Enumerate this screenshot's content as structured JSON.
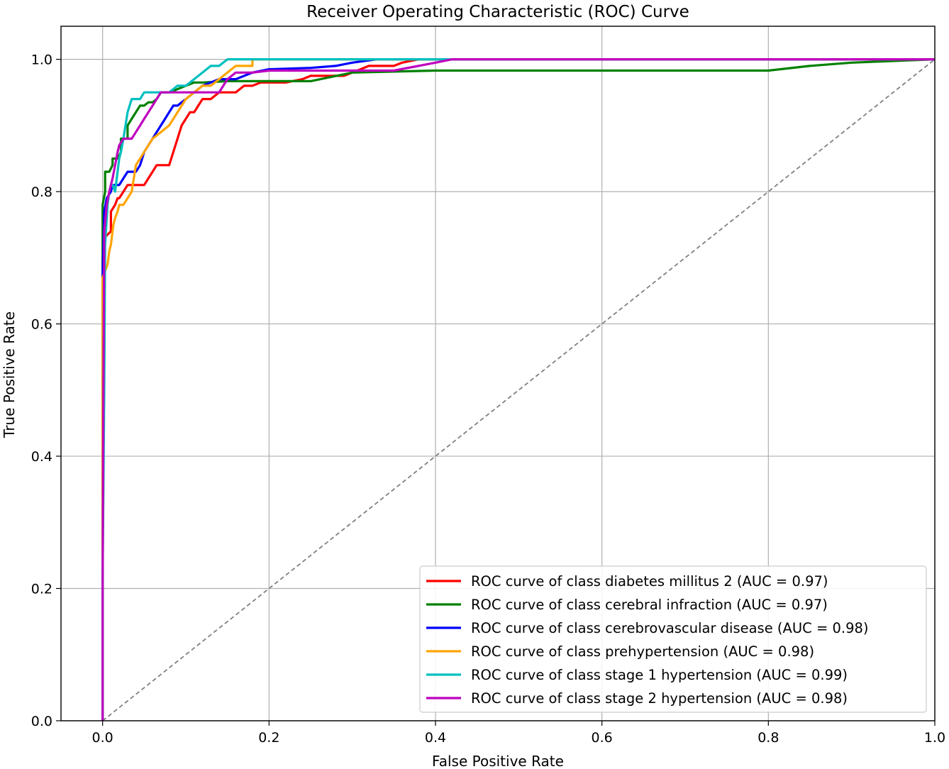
{
  "chart_data": {
    "type": "line",
    "title": "Receiver Operating Characteristic (ROC) Curve",
    "xlabel": "False Positive Rate",
    "ylabel": "True Positive Rate",
    "xlim": [
      -0.05,
      1.0
    ],
    "ylim": [
      0.0,
      1.05
    ],
    "xticks": [
      0.0,
      0.2,
      0.4,
      0.6,
      0.8,
      1.0
    ],
    "yticks": [
      0.0,
      0.2,
      0.4,
      0.6,
      0.8,
      1.0
    ],
    "xtick_labels": [
      "0.0",
      "0.2",
      "0.4",
      "0.6",
      "0.8",
      "1.0"
    ],
    "ytick_labels": [
      "0.0",
      "0.2",
      "0.4",
      "0.6",
      "0.8",
      "1.0"
    ],
    "grid": true,
    "legend_position": "lower-right",
    "diagonal": {
      "x": [
        0,
        1
      ],
      "y": [
        0,
        1
      ],
      "color": "#808080",
      "style": "dashed"
    },
    "series": [
      {
        "name": "ROC curve of class diabetes millitus 2 (AUC = 0.97)",
        "color": "#ff0000",
        "x": [
          0,
          0.0,
          0.002,
          0.002,
          0.01,
          0.01,
          0.015,
          0.018,
          0.02,
          0.025,
          0.03,
          0.04,
          0.05,
          0.055,
          0.06,
          0.065,
          0.07,
          0.075,
          0.08,
          0.085,
          0.09,
          0.095,
          0.1,
          0.105,
          0.11,
          0.115,
          0.12,
          0.125,
          0.13,
          0.14,
          0.15,
          0.155,
          0.16,
          0.17,
          0.18,
          0.19,
          0.2,
          0.22,
          0.24,
          0.25,
          0.26,
          0.27,
          0.28,
          0.29,
          0.3,
          0.31,
          0.32,
          0.33,
          0.35,
          0.36,
          0.38,
          0.4,
          0.41,
          0.45,
          0.6,
          0.8,
          1.0
        ],
        "y": [
          0,
          0.7,
          0.72,
          0.73,
          0.74,
          0.77,
          0.78,
          0.79,
          0.79,
          0.8,
          0.81,
          0.81,
          0.81,
          0.82,
          0.83,
          0.84,
          0.84,
          0.84,
          0.84,
          0.86,
          0.88,
          0.9,
          0.91,
          0.92,
          0.92,
          0.93,
          0.94,
          0.94,
          0.94,
          0.95,
          0.95,
          0.95,
          0.95,
          0.96,
          0.96,
          0.965,
          0.965,
          0.965,
          0.97,
          0.975,
          0.975,
          0.975,
          0.975,
          0.975,
          0.98,
          0.985,
          0.99,
          0.99,
          0.99,
          0.995,
          1.0,
          1.0,
          1.0,
          1.0,
          1.0,
          1.0,
          1.0
        ]
      },
      {
        "name": "ROC curve of class cerebral infraction (AUC = 0.97)",
        "color": "#008000",
        "x": [
          0,
          0.0,
          0.003,
          0.003,
          0.008,
          0.012,
          0.012,
          0.018,
          0.022,
          0.022,
          0.03,
          0.03,
          0.035,
          0.04,
          0.045,
          0.05,
          0.055,
          0.06,
          0.065,
          0.07,
          0.075,
          0.08,
          0.09,
          0.1,
          0.11,
          0.12,
          0.15,
          0.2,
          0.25,
          0.3,
          0.4,
          0.5,
          0.6,
          0.7,
          0.8,
          0.85,
          0.9,
          1.0
        ],
        "y": [
          0,
          0.78,
          0.8,
          0.83,
          0.83,
          0.84,
          0.85,
          0.85,
          0.86,
          0.88,
          0.88,
          0.9,
          0.91,
          0.92,
          0.93,
          0.93,
          0.935,
          0.935,
          0.94,
          0.95,
          0.95,
          0.95,
          0.955,
          0.96,
          0.965,
          0.965,
          0.967,
          0.967,
          0.967,
          0.98,
          0.983,
          0.983,
          0.983,
          0.983,
          0.983,
          0.99,
          0.995,
          1.0
        ]
      },
      {
        "name": "ROC curve of class cerebrovascular disease (AUC = 0.98)",
        "color": "#0000ff",
        "x": [
          0,
          0.0,
          0.002,
          0.005,
          0.01,
          0.012,
          0.015,
          0.02,
          0.025,
          0.03,
          0.035,
          0.04,
          0.045,
          0.05,
          0.055,
          0.06,
          0.065,
          0.07,
          0.075,
          0.08,
          0.085,
          0.09,
          0.1,
          0.11,
          0.12,
          0.14,
          0.16,
          0.18,
          0.2,
          0.25,
          0.28,
          0.3,
          0.33,
          0.35,
          0.4,
          1.0
        ],
        "y": [
          0,
          0.67,
          0.77,
          0.79,
          0.8,
          0.81,
          0.81,
          0.81,
          0.82,
          0.83,
          0.83,
          0.83,
          0.84,
          0.86,
          0.87,
          0.88,
          0.89,
          0.9,
          0.91,
          0.92,
          0.93,
          0.93,
          0.94,
          0.95,
          0.96,
          0.97,
          0.97,
          0.98,
          0.985,
          0.987,
          0.99,
          0.995,
          1.0,
          1.0,
          1.0,
          1.0
        ]
      },
      {
        "name": "ROC curve of class prehypertension (AUC = 0.98)",
        "color": "#ffa500",
        "x": [
          0,
          0.0,
          0.003,
          0.006,
          0.008,
          0.01,
          0.013,
          0.015,
          0.018,
          0.02,
          0.025,
          0.03,
          0.035,
          0.04,
          0.045,
          0.05,
          0.055,
          0.06,
          0.07,
          0.08,
          0.09,
          0.1,
          0.11,
          0.12,
          0.13,
          0.14,
          0.15,
          0.16,
          0.17,
          0.18,
          0.18,
          0.2,
          0.25,
          0.3,
          0.4,
          1.0
        ],
        "y": [
          0,
          0.67,
          0.68,
          0.69,
          0.71,
          0.72,
          0.75,
          0.76,
          0.77,
          0.78,
          0.78,
          0.79,
          0.8,
          0.84,
          0.85,
          0.86,
          0.87,
          0.88,
          0.89,
          0.9,
          0.92,
          0.94,
          0.95,
          0.96,
          0.96,
          0.97,
          0.98,
          0.99,
          0.99,
          0.99,
          1.0,
          1.0,
          1.0,
          1.0,
          1.0,
          1.0
        ]
      },
      {
        "name": "ROC curve of class stage 1 hypertension (AUC = 0.99)",
        "color": "#00bfbf",
        "x": [
          0,
          0.0,
          0.002,
          0.003,
          0.006,
          0.008,
          0.01,
          0.012,
          0.015,
          0.018,
          0.02,
          0.022,
          0.025,
          0.03,
          0.035,
          0.04,
          0.045,
          0.05,
          0.06,
          0.07,
          0.08,
          0.09,
          0.1,
          0.11,
          0.12,
          0.13,
          0.14,
          0.15,
          0.2,
          0.3,
          0.4,
          0.6,
          0.8,
          1.0
        ],
        "y": [
          0,
          0.22,
          0.5,
          0.72,
          0.78,
          0.8,
          0.81,
          0.81,
          0.8,
          0.83,
          0.85,
          0.86,
          0.88,
          0.92,
          0.94,
          0.94,
          0.94,
          0.95,
          0.95,
          0.95,
          0.95,
          0.96,
          0.96,
          0.97,
          0.98,
          0.99,
          0.99,
          1.0,
          1.0,
          1.0,
          1.0,
          1.0,
          1.0,
          1.0
        ]
      },
      {
        "name": "ROC curve of class stage 2 hypertension (AUC = 0.98)",
        "color": "#bf00bf",
        "x": [
          0,
          0.0,
          0.001,
          0.002,
          0.005,
          0.008,
          0.01,
          0.012,
          0.015,
          0.018,
          0.02,
          0.025,
          0.03,
          0.035,
          0.04,
          0.045,
          0.05,
          0.055,
          0.06,
          0.065,
          0.07,
          0.075,
          0.08,
          0.09,
          0.1,
          0.12,
          0.14,
          0.15,
          0.16,
          0.18,
          0.2,
          0.3,
          0.35,
          0.4,
          0.42,
          0.6,
          0.8,
          1.0
        ],
        "y": [
          0,
          0.2,
          0.5,
          0.74,
          0.78,
          0.8,
          0.81,
          0.82,
          0.84,
          0.86,
          0.87,
          0.88,
          0.88,
          0.88,
          0.89,
          0.9,
          0.91,
          0.92,
          0.93,
          0.94,
          0.95,
          0.95,
          0.95,
          0.95,
          0.95,
          0.95,
          0.95,
          0.97,
          0.98,
          0.98,
          0.983,
          0.983,
          0.983,
          0.995,
          1.0,
          1.0,
          1.0,
          1.0
        ]
      }
    ]
  }
}
